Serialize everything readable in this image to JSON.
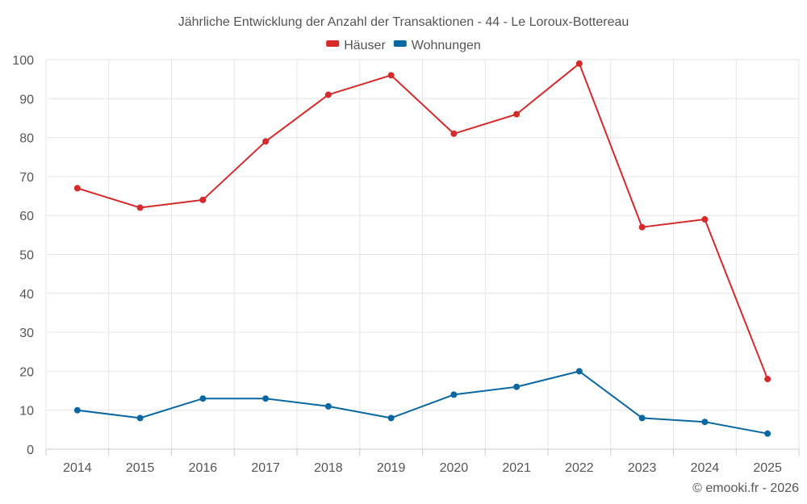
{
  "chart_data": {
    "type": "line",
    "title": "Jährliche Entwicklung der Anzahl der Transaktionen - 44 - Le Loroux-Bottereau",
    "categories": [
      "2014",
      "2015",
      "2016",
      "2017",
      "2018",
      "2019",
      "2020",
      "2021",
      "2022",
      "2023",
      "2024",
      "2025"
    ],
    "series": [
      {
        "name": "Häuser",
        "color": "#d42a2a",
        "values": [
          67,
          62,
          64,
          79,
          91,
          96,
          81,
          86,
          99,
          57,
          59,
          18
        ]
      },
      {
        "name": "Wohnungen",
        "color": "#0b67a0",
        "values": [
          10,
          8,
          13,
          13,
          11,
          8,
          14,
          16,
          20,
          8,
          7,
          4
        ]
      }
    ],
    "ylim": [
      0,
      100
    ],
    "yticks": [
      0,
      10,
      20,
      30,
      40,
      50,
      60,
      70,
      80,
      90,
      100
    ],
    "grid": true,
    "legend": "top-center",
    "credit": "© emooki.fr - 2026"
  }
}
